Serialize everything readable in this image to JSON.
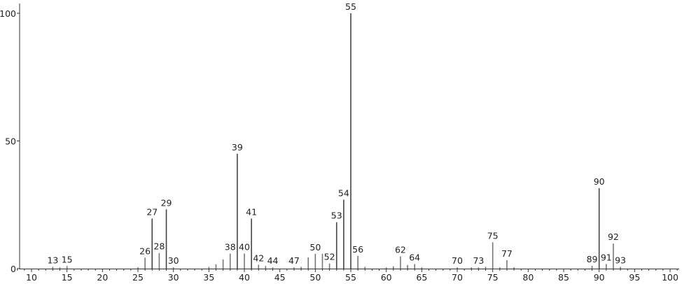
{
  "chart_data": {
    "type": "bar",
    "title": "",
    "xlabel": "",
    "ylabel": "",
    "xlim": [
      7,
      102
    ],
    "ylim": [
      0,
      100
    ],
    "x_ticks": [
      10,
      15,
      20,
      25,
      30,
      35,
      40,
      45,
      50,
      55,
      60,
      65,
      70,
      75,
      80,
      85,
      90,
      95,
      100
    ],
    "y_ticks": [
      0,
      50,
      100
    ],
    "grid": false,
    "bar_color": "#777777",
    "peaks": [
      {
        "mz": 13,
        "intensity": 0.7,
        "label": "13"
      },
      {
        "mz": 14,
        "intensity": 0.5
      },
      {
        "mz": 15,
        "intensity": 1.0,
        "label": "15"
      },
      {
        "mz": 25,
        "intensity": 0.5
      },
      {
        "mz": 26,
        "intensity": 4.3,
        "label": "26"
      },
      {
        "mz": 27,
        "intensity": 19.6,
        "label": "27"
      },
      {
        "mz": 28,
        "intensity": 6.1,
        "label": "28"
      },
      {
        "mz": 29,
        "intensity": 23.2,
        "label": "29"
      },
      {
        "mz": 30,
        "intensity": 0.5,
        "label": "30"
      },
      {
        "mz": 35,
        "intensity": 0.7
      },
      {
        "mz": 36,
        "intensity": 1.7
      },
      {
        "mz": 37,
        "intensity": 3.6
      },
      {
        "mz": 38,
        "intensity": 5.9,
        "label": "38"
      },
      {
        "mz": 39,
        "intensity": 45.0,
        "label": "39"
      },
      {
        "mz": 40,
        "intensity": 5.9,
        "label": "40"
      },
      {
        "mz": 41,
        "intensity": 19.6,
        "label": "41"
      },
      {
        "mz": 42,
        "intensity": 1.5,
        "label": "42"
      },
      {
        "mz": 43,
        "intensity": 1.0
      },
      {
        "mz": 44,
        "intensity": 0.5,
        "label": "44"
      },
      {
        "mz": 47,
        "intensity": 0.5,
        "label": "47"
      },
      {
        "mz": 48,
        "intensity": 0.7
      },
      {
        "mz": 49,
        "intensity": 4.4
      },
      {
        "mz": 50,
        "intensity": 5.8,
        "label": "50"
      },
      {
        "mz": 51,
        "intensity": 5.8
      },
      {
        "mz": 52,
        "intensity": 2.0,
        "label": "52"
      },
      {
        "mz": 53,
        "intensity": 18.2,
        "label": "53"
      },
      {
        "mz": 54,
        "intensity": 27.0,
        "label": "54"
      },
      {
        "mz": 55,
        "intensity": 100,
        "label": "55"
      },
      {
        "mz": 56,
        "intensity": 5.0,
        "label": "56"
      },
      {
        "mz": 57,
        "intensity": 0.7
      },
      {
        "mz": 60,
        "intensity": 0.5
      },
      {
        "mz": 61,
        "intensity": 0.9
      },
      {
        "mz": 62,
        "intensity": 4.8,
        "label": "62"
      },
      {
        "mz": 63,
        "intensity": 1.4
      },
      {
        "mz": 64,
        "intensity": 1.8,
        "label": "64"
      },
      {
        "mz": 65,
        "intensity": 0.5
      },
      {
        "mz": 70,
        "intensity": 0.5,
        "label": "70"
      },
      {
        "mz": 72,
        "intensity": 0.5
      },
      {
        "mz": 73,
        "intensity": 0.5,
        "label": "73"
      },
      {
        "mz": 74,
        "intensity": 0.7
      },
      {
        "mz": 75,
        "intensity": 10.3,
        "label": "75"
      },
      {
        "mz": 76,
        "intensity": 0.5
      },
      {
        "mz": 77,
        "intensity": 3.3,
        "label": "77"
      },
      {
        "mz": 78,
        "intensity": 0.5
      },
      {
        "mz": 89,
        "intensity": 1.1,
        "label": "89"
      },
      {
        "mz": 90,
        "intensity": 31.5,
        "label": "90"
      },
      {
        "mz": 91,
        "intensity": 1.8,
        "label": "91"
      },
      {
        "mz": 92,
        "intensity": 9.8,
        "label": "92"
      },
      {
        "mz": 93,
        "intensity": 0.7,
        "label": "93"
      }
    ]
  }
}
